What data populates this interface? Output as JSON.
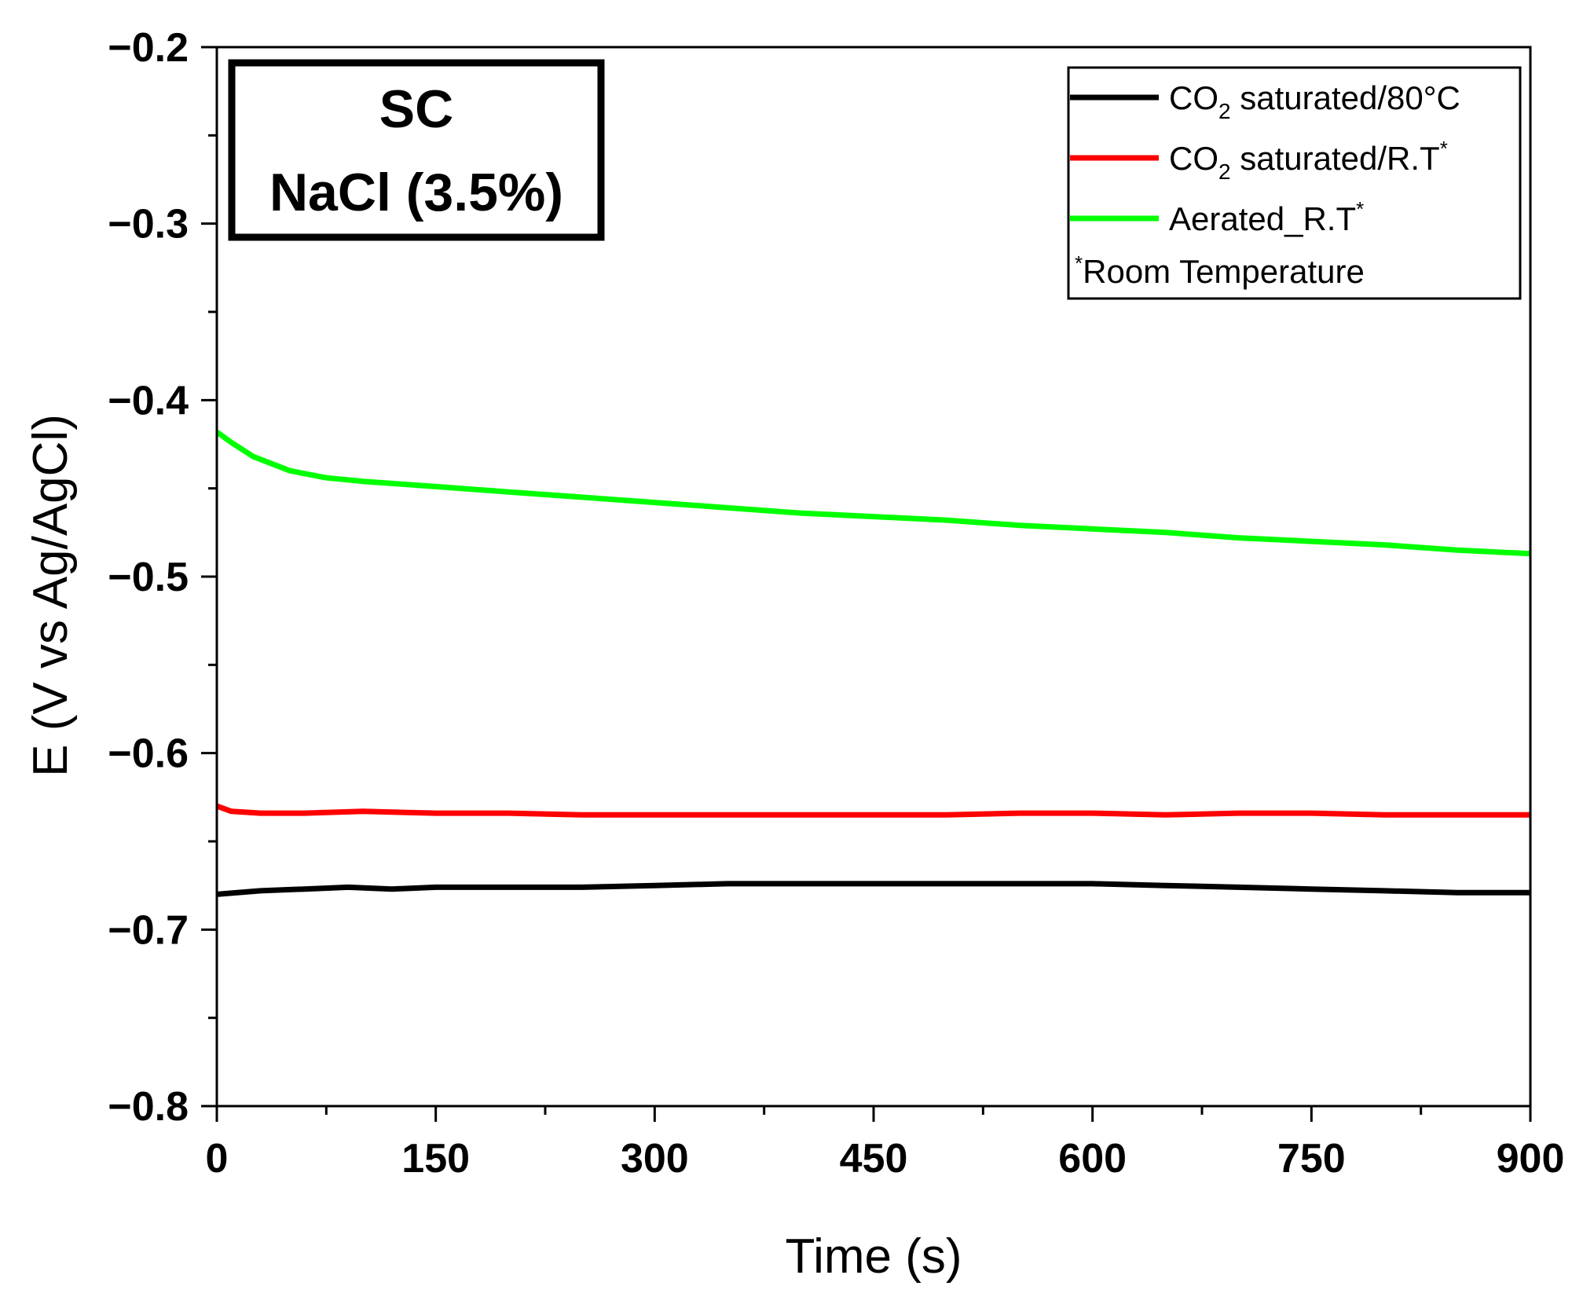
{
  "chart_data": {
    "type": "line",
    "title": "",
    "xlabel": "Time (s)",
    "ylabel": "E (V vs Ag/AgCl)",
    "xlim": [
      0,
      900
    ],
    "ylim": [
      -0.8,
      -0.2
    ],
    "x_ticks": [
      0,
      150,
      300,
      450,
      600,
      750,
      900
    ],
    "y_ticks": [
      -0.2,
      -0.3,
      -0.4,
      -0.5,
      -0.6,
      -0.7,
      -0.8
    ],
    "x_tick_labels": [
      "0",
      "150",
      "300",
      "450",
      "600",
      "750",
      "900"
    ],
    "y_tick_labels": [
      "−0.2",
      "−0.3",
      "−0.4",
      "−0.5",
      "−0.6",
      "−0.7",
      "−0.8"
    ],
    "grid": false,
    "legend_position": "top-right",
    "inset_label": {
      "line1": "SC",
      "line2": "NaCl (3.5%)"
    },
    "legend_footnote": {
      "mark": "*",
      "text": "Room Temperature"
    },
    "series": [
      {
        "name": "CO2 saturated/80°C",
        "label_parts": {
          "pre": "CO",
          "sub": "2",
          "post": " saturated/80°C",
          "sup": ""
        },
        "color": "#000000",
        "x": [
          0,
          30,
          60,
          90,
          120,
          150,
          200,
          250,
          300,
          350,
          400,
          450,
          500,
          550,
          600,
          650,
          700,
          750,
          800,
          850,
          900
        ],
        "y": [
          -0.68,
          -0.678,
          -0.677,
          -0.676,
          -0.677,
          -0.676,
          -0.676,
          -0.676,
          -0.675,
          -0.674,
          -0.674,
          -0.674,
          -0.674,
          -0.674,
          -0.674,
          -0.675,
          -0.676,
          -0.677,
          -0.678,
          -0.679,
          -0.679
        ]
      },
      {
        "name": "CO2 saturated/R.T*",
        "label_parts": {
          "pre": "CO",
          "sub": "2",
          "post": " saturated/R.T",
          "sup": "*"
        },
        "color": "#ff0000",
        "x": [
          0,
          10,
          30,
          60,
          100,
          150,
          200,
          250,
          300,
          350,
          400,
          450,
          500,
          550,
          600,
          650,
          700,
          750,
          800,
          850,
          900
        ],
        "y": [
          -0.63,
          -0.633,
          -0.634,
          -0.634,
          -0.633,
          -0.634,
          -0.634,
          -0.635,
          -0.635,
          -0.635,
          -0.635,
          -0.635,
          -0.635,
          -0.634,
          -0.634,
          -0.635,
          -0.634,
          -0.634,
          -0.635,
          -0.635,
          -0.635
        ]
      },
      {
        "name": "Aerated_R.T*",
        "label_parts": {
          "pre": "Aerated_R.T",
          "sub": "",
          "post": "",
          "sup": "*"
        },
        "color": "#00ff00",
        "x": [
          0,
          10,
          25,
          50,
          75,
          100,
          150,
          200,
          250,
          300,
          350,
          400,
          450,
          500,
          550,
          600,
          650,
          700,
          750,
          800,
          850,
          900
        ],
        "y": [
          -0.418,
          -0.424,
          -0.432,
          -0.44,
          -0.444,
          -0.446,
          -0.449,
          -0.452,
          -0.455,
          -0.458,
          -0.461,
          -0.464,
          -0.466,
          -0.468,
          -0.471,
          -0.473,
          -0.475,
          -0.478,
          -0.48,
          -0.482,
          -0.485,
          -0.487
        ]
      }
    ]
  }
}
